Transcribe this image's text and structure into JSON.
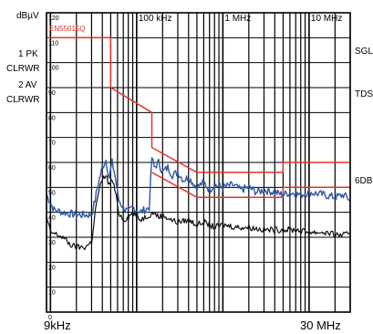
{
  "header": {
    "unit": "dBµV"
  },
  "left_panel": {
    "trace1_num": "1 PK",
    "trace1_mode": "CLRWR",
    "trace2_num": "2 AV",
    "trace2_mode": "CLRWR"
  },
  "right_panel": {
    "sgl": "SGL",
    "tds": "TDS",
    "six_db": "6DB"
  },
  "axes": {
    "x_start": "9kHz",
    "x_end": "30 MHz"
  },
  "chart_data": {
    "type": "line",
    "x_scale": "log",
    "x_range_hz": [
      9000,
      30000000
    ],
    "y_range_dbuv": [
      0,
      120
    ],
    "y_ticks": [
      "120",
      "110",
      "100",
      "90",
      "80",
      "70",
      "60",
      "50",
      "40",
      "30",
      "20",
      "10",
      "0"
    ],
    "x_decade_labels": [
      {
        "freq_hz": 100000,
        "label": "100 kHz"
      },
      {
        "freq_hz": 1000000,
        "label": "1 MHz"
      },
      {
        "freq_hz": 10000000,
        "label": "10 MHz"
      }
    ],
    "grid": true,
    "limit_lines": [
      {
        "name": "EN55015Q",
        "color": "#e8322a",
        "points": [
          [
            9000,
            110
          ],
          [
            50000,
            110
          ],
          [
            50000,
            90
          ],
          [
            150000,
            80
          ],
          [
            150000,
            66
          ],
          [
            500000,
            56
          ],
          [
            5000000,
            56
          ],
          [
            5000000,
            60
          ],
          [
            30000000,
            60
          ]
        ]
      },
      {
        "name": "",
        "color": "#e8322a",
        "points": [
          [
            150000,
            56
          ],
          [
            500000,
            46
          ],
          [
            5000000,
            46
          ],
          [
            5000000,
            50
          ],
          [
            30000000,
            50
          ]
        ]
      }
    ],
    "series": [
      {
        "color": "#2f59a8",
        "points": [
          [
            9000,
            47
          ],
          [
            11000,
            41
          ],
          [
            14000,
            40
          ],
          [
            20000,
            39
          ],
          [
            30000,
            39
          ],
          [
            33000,
            45
          ],
          [
            36000,
            52
          ],
          [
            40000,
            58
          ],
          [
            44000,
            61
          ],
          [
            48000,
            54
          ],
          [
            52000,
            60
          ],
          [
            56000,
            55
          ],
          [
            62000,
            45
          ],
          [
            70000,
            42
          ],
          [
            80000,
            40
          ],
          [
            90000,
            42
          ],
          [
            110000,
            40
          ],
          [
            140000,
            42
          ],
          [
            150000,
            62
          ],
          [
            160000,
            58
          ],
          [
            180000,
            60
          ],
          [
            200000,
            56
          ],
          [
            230000,
            58
          ],
          [
            260000,
            55
          ],
          [
            300000,
            56
          ],
          [
            350000,
            53
          ],
          [
            400000,
            54
          ],
          [
            500000,
            50
          ],
          [
            600000,
            52
          ],
          [
            700000,
            49
          ],
          [
            800000,
            51
          ],
          [
            1000000,
            50
          ],
          [
            1300000,
            51
          ],
          [
            1600000,
            49
          ],
          [
            2000000,
            50
          ],
          [
            2500000,
            48
          ],
          [
            3000000,
            49
          ],
          [
            4000000,
            48
          ],
          [
            5000000,
            47
          ],
          [
            6000000,
            48
          ],
          [
            8000000,
            47
          ],
          [
            10000000,
            48
          ],
          [
            15000000,
            47
          ],
          [
            20000000,
            46
          ],
          [
            25000000,
            47
          ],
          [
            30000000,
            45
          ]
        ]
      },
      {
        "color": "#111111",
        "points": [
          [
            9000,
            38
          ],
          [
            10000,
            32
          ],
          [
            12000,
            31
          ],
          [
            14000,
            30
          ],
          [
            17000,
            27
          ],
          [
            20000,
            26
          ],
          [
            25000,
            26
          ],
          [
            30000,
            28
          ],
          [
            33000,
            40
          ],
          [
            36000,
            48
          ],
          [
            40000,
            53
          ],
          [
            44000,
            55
          ],
          [
            48000,
            51
          ],
          [
            52000,
            53
          ],
          [
            56000,
            49
          ],
          [
            62000,
            40
          ],
          [
            70000,
            37
          ],
          [
            80000,
            38
          ],
          [
            90000,
            40
          ],
          [
            110000,
            37
          ],
          [
            140000,
            39
          ],
          [
            160000,
            40
          ],
          [
            180000,
            38
          ],
          [
            200000,
            39
          ],
          [
            250000,
            37
          ],
          [
            300000,
            36
          ],
          [
            400000,
            37
          ],
          [
            500000,
            35
          ],
          [
            600000,
            36
          ],
          [
            800000,
            34
          ],
          [
            1000000,
            35
          ],
          [
            1500000,
            34
          ],
          [
            2000000,
            34
          ],
          [
            3000000,
            33
          ],
          [
            5000000,
            33
          ],
          [
            7000000,
            33
          ],
          [
            10000000,
            32
          ],
          [
            15000000,
            32
          ],
          [
            20000000,
            31
          ],
          [
            30000000,
            31
          ]
        ]
      }
    ]
  }
}
